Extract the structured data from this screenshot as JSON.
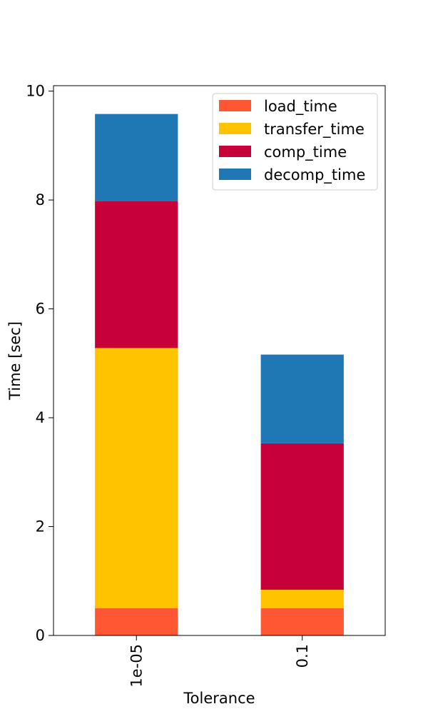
{
  "chart_data": {
    "type": "bar",
    "stacked": true,
    "categories": [
      "1e-05",
      "0.1"
    ],
    "series": [
      {
        "name": "load_time",
        "values": [
          0.5,
          0.5
        ],
        "color": "#ff5733"
      },
      {
        "name": "transfer_time",
        "values": [
          4.78,
          0.34
        ],
        "color": "#ffc300"
      },
      {
        "name": "comp_time",
        "values": [
          2.7,
          2.69
        ],
        "color": "#c70039"
      },
      {
        "name": "decomp_time",
        "values": [
          1.6,
          1.63
        ],
        "color": "#1f77b4"
      }
    ],
    "xlabel": "Tolerance",
    "ylabel": "Time [sec]",
    "ylim": [
      0,
      10.1
    ],
    "yticks": [
      "0",
      "2",
      "4",
      "6",
      "8",
      "10"
    ],
    "grid": false,
    "legend_position": "top-right",
    "xtick_rotation": "vertical"
  }
}
